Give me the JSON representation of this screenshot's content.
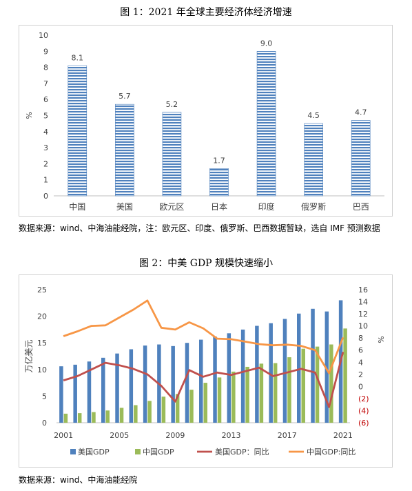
{
  "fig1": {
    "title": "图 1：2021 年全球主要经济体经济增速",
    "source": "数据来源：wind、中海油能经院，注：欧元区、印度、俄罗斯、巴西数据暂缺，选自 IMF 预测数据",
    "chart_data": {
      "type": "bar",
      "categories": [
        "中国",
        "美国",
        "欧元区",
        "日本",
        "印度",
        "俄罗斯",
        "巴西"
      ],
      "values": [
        8.1,
        5.7,
        5.2,
        1.7,
        9.0,
        4.5,
        4.7
      ],
      "value_labels": [
        "8.1",
        "5.7",
        "5.2",
        "1.7",
        "9.0",
        "4.5",
        "4.7"
      ],
      "ylabel": "%",
      "ylim": [
        0,
        10
      ],
      "yticks": [
        "0",
        "1",
        "2",
        "3",
        "4",
        "5",
        "6",
        "7",
        "8",
        "9",
        "10"
      ],
      "bar_color": "#4f81bd",
      "grid": false
    }
  },
  "fig2": {
    "title": "图 2：中美 GDP 规模快速缩小",
    "source": "数据来源：wind、中海油能经院",
    "chart_data": {
      "type": "bar+line",
      "x": [
        2001,
        2002,
        2003,
        2004,
        2005,
        2006,
        2007,
        2008,
        2009,
        2010,
        2011,
        2012,
        2013,
        2014,
        2015,
        2016,
        2017,
        2018,
        2019,
        2020,
        2021
      ],
      "xtick_labels": [
        "2001",
        "2005",
        "2009",
        "2013",
        "2017",
        "2021"
      ],
      "xtick_years": [
        2001,
        2005,
        2009,
        2013,
        2017,
        2021
      ],
      "ylabel_left": "万亿美元",
      "ylim_left": [
        0,
        25
      ],
      "yticks_left": [
        "0",
        "5",
        "10",
        "15",
        "20",
        "25"
      ],
      "ylabel_right": "%",
      "ylim_right": [
        -6,
        16
      ],
      "yticks_right": [
        {
          "value": 16,
          "label": "16"
        },
        {
          "value": 14,
          "label": "14"
        },
        {
          "value": 12,
          "label": "12"
        },
        {
          "value": 10,
          "label": "10"
        },
        {
          "value": 8,
          "label": "8"
        },
        {
          "value": 6,
          "label": "6"
        },
        {
          "value": 4,
          "label": "4"
        },
        {
          "value": 2,
          "label": "2"
        },
        {
          "value": 0,
          "label": "0"
        },
        {
          "value": -2,
          "label": "(2)"
        },
        {
          "value": -4,
          "label": "(4)"
        },
        {
          "value": -6,
          "label": "(6)"
        }
      ],
      "negative_tick_color": "#c00000",
      "legend_position": "bottom",
      "series": [
        {
          "name": "美国GDP",
          "kind": "bar",
          "axis": "left",
          "color": "#4f81bd",
          "values": [
            10.6,
            10.9,
            11.5,
            12.2,
            13.0,
            13.8,
            14.5,
            14.7,
            14.4,
            15.0,
            15.6,
            16.2,
            16.8,
            17.5,
            18.2,
            18.7,
            19.5,
            20.5,
            21.4,
            20.9,
            23.0
          ]
        },
        {
          "name": "中国GDP",
          "kind": "bar",
          "axis": "left",
          "color": "#9bbb59",
          "values": [
            1.7,
            1.8,
            2.0,
            2.3,
            2.8,
            3.3,
            4.1,
            4.9,
            5.4,
            6.2,
            7.5,
            8.5,
            9.6,
            10.5,
            11.1,
            11.2,
            12.3,
            13.9,
            14.3,
            14.7,
            17.7
          ]
        },
        {
          "name": "美国GDP：同比",
          "kind": "line",
          "axis": "right",
          "color": "#c0504d",
          "values": [
            1.0,
            1.7,
            2.8,
            3.9,
            3.5,
            2.9,
            2.0,
            0.1,
            -2.5,
            2.7,
            1.6,
            2.3,
            1.9,
            2.5,
            3.1,
            1.7,
            2.3,
            2.9,
            2.3,
            -3.4,
            5.7
          ]
        },
        {
          "name": "中国GDP:同比",
          "kind": "line",
          "axis": "right",
          "color": "#f79646",
          "values": [
            8.3,
            9.1,
            10.0,
            10.1,
            11.4,
            12.7,
            14.2,
            9.7,
            9.4,
            10.6,
            9.6,
            7.9,
            7.8,
            7.4,
            7.0,
            6.8,
            6.9,
            6.7,
            6.0,
            2.2,
            8.1
          ]
        }
      ]
    }
  }
}
